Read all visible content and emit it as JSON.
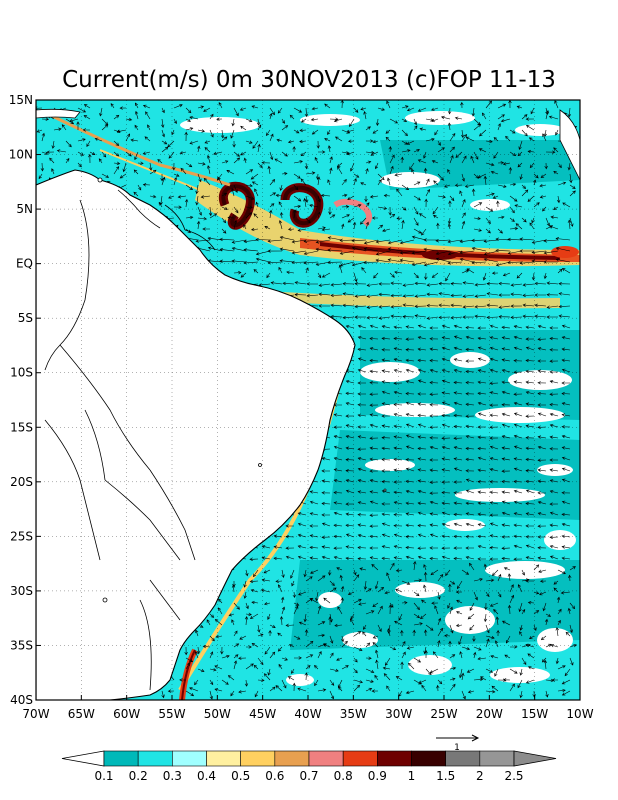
{
  "title": "Current(m/s) 0m 30NOV2013 (c)FOP 11-13",
  "map": {
    "lon_range": [
      -70,
      -10
    ],
    "lat_range": [
      -40,
      15
    ],
    "x_ticks": [
      {
        "lon": -70,
        "label": "70W"
      },
      {
        "lon": -65,
        "label": "65W"
      },
      {
        "lon": -60,
        "label": "60W"
      },
      {
        "lon": -55,
        "label": "55W"
      },
      {
        "lon": -50,
        "label": "50W"
      },
      {
        "lon": -45,
        "label": "45W"
      },
      {
        "lon": -40,
        "label": "40W"
      },
      {
        "lon": -35,
        "label": "35W"
      },
      {
        "lon": -30,
        "label": "30W"
      },
      {
        "lon": -25,
        "label": "25W"
      },
      {
        "lon": -20,
        "label": "20W"
      },
      {
        "lon": -15,
        "label": "15W"
      },
      {
        "lon": -10,
        "label": "10W"
      }
    ],
    "y_ticks": [
      {
        "lat": 15,
        "label": "15N"
      },
      {
        "lat": 10,
        "label": "10N"
      },
      {
        "lat": 5,
        "label": "5N"
      },
      {
        "lat": 0,
        "label": "EQ"
      },
      {
        "lat": -5,
        "label": "5S"
      },
      {
        "lat": -10,
        "label": "10S"
      },
      {
        "lat": -15,
        "label": "15S"
      },
      {
        "lat": -20,
        "label": "20S"
      },
      {
        "lat": -25,
        "label": "25S"
      },
      {
        "lat": -30,
        "label": "30S"
      },
      {
        "lat": -35,
        "label": "35S"
      },
      {
        "lat": -40,
        "label": "40S"
      }
    ]
  },
  "colorbar": {
    "levels": [
      "0.1",
      "0.2",
      "0.3",
      "0.4",
      "0.5",
      "0.6",
      "0.7",
      "0.8",
      "0.9",
      "1",
      "1.5",
      "2",
      "2.5"
    ],
    "colors": [
      "#00b9b9",
      "#20e4e4",
      "#a0ffff",
      "#fff0a0",
      "#ffd060",
      "#e8a050",
      "#f08080",
      "#e63c14",
      "#6e0000",
      "#380000",
      "#787878",
      "#969696"
    ],
    "under_color": "#ffffff",
    "over_color": "#8c8c8c"
  },
  "reference_vector": {
    "label": "1"
  },
  "colors": {
    "ocean_base": "#20e4e4",
    "land": "#ffffff",
    "coast": "#000000"
  }
}
